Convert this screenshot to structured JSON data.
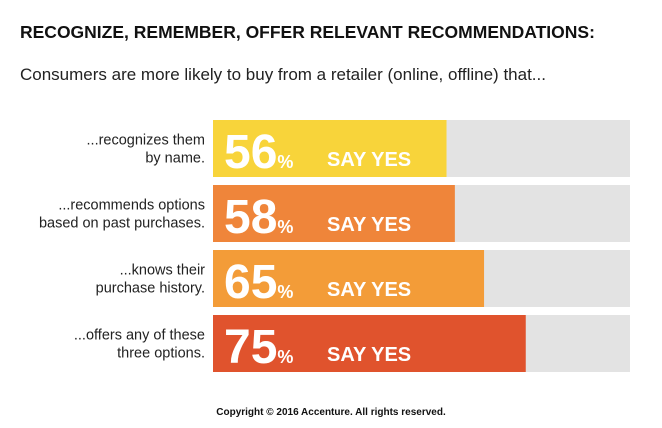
{
  "chart_data": {
    "type": "bar",
    "orientation": "horizontal",
    "title": "RECOGNIZE, REMEMBER, OFFER RELEVANT RECOMMENDATIONS:",
    "subtitle": "Consumers are more likely to buy from a retailer (online, offline) that...",
    "categories": [
      [
        "...recognizes them",
        "by name."
      ],
      [
        "...recommends options",
        "based on past purchases."
      ],
      [
        "...knows their",
        "purchase history."
      ],
      [
        "...offers any of these",
        "three options."
      ]
    ],
    "values": [
      56,
      58,
      65,
      75
    ],
    "value_labels": [
      "56%",
      "58%",
      "65%",
      "75%"
    ],
    "bar_annotation": "SAY YES",
    "colors": [
      "#f8d43a",
      "#ef853a",
      "#f39c38",
      "#e0532d"
    ],
    "track_color": "#e3e3e3",
    "xlim": [
      0,
      100
    ],
    "footer": "Copyright © 2016 Accenture. All rights reserved."
  }
}
